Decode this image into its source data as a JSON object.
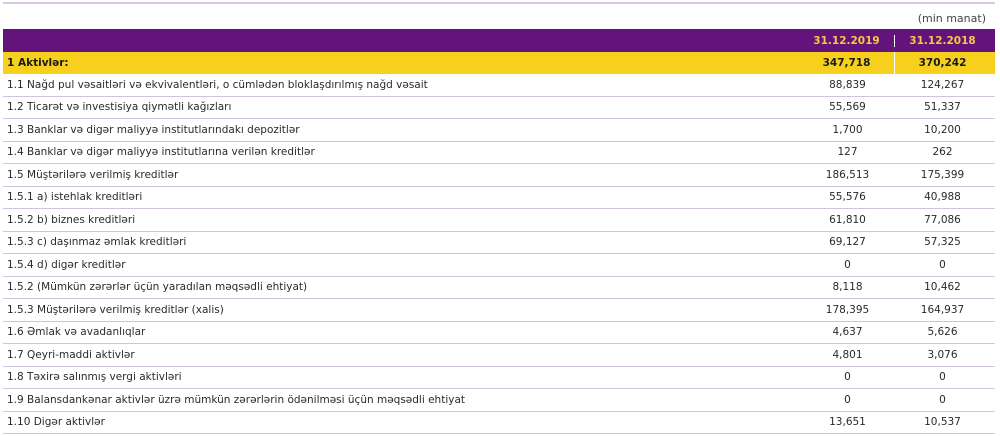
{
  "unit": "(min manat)",
  "columns": [
    "31.12.2019",
    "31.12.2018"
  ],
  "colors": {
    "header_bg": "#63147a",
    "header_text": "#f6c945",
    "total_bg": "#f6d01c",
    "row_line": "#d2c2dc"
  },
  "total": {
    "label": "1 Aktivlər:",
    "v2019": "347,718",
    "v2018": "370,242"
  },
  "rows": [
    {
      "label": "1.1 Nağd pul vəsaitləri və ekvivalentləri, o cümlədən bloklaşdırılmış nağd vəsait",
      "v2019": "88,839",
      "v2018": "124,267"
    },
    {
      "label": "1.2 Ticarət və investisiya qiymətli kağızları",
      "v2019": "55,569",
      "v2018": "51,337"
    },
    {
      "label": "1.3 Banklar və digər maliyyə institutlarındakı depozitlər",
      "v2019": "1,700",
      "v2018": "10,200"
    },
    {
      "label": "1.4 Banklar və digər maliyyə institutlarına verilən kreditlər",
      "v2019": "127",
      "v2018": "262"
    },
    {
      "label": "1.5 Müştərilərə verilmiş kreditlər",
      "v2019": "186,513",
      "v2018": "175,399"
    },
    {
      "label": "1.5.1 a) istehlak kreditləri",
      "v2019": "55,576",
      "v2018": "40,988"
    },
    {
      "label": "1.5.2 b) biznes kreditləri",
      "v2019": "61,810",
      "v2018": "77,086"
    },
    {
      "label": "1.5.3 c) daşınmaz əmlak kreditləri",
      "v2019": "69,127",
      "v2018": "57,325"
    },
    {
      "label": "1.5.4 d) digər kreditlər",
      "v2019": "0",
      "v2018": "0"
    },
    {
      "label": "1.5.2 (Mümkün zərərlər üçün yaradılan məqsədli ehtiyat)",
      "v2019": "8,118",
      "v2018": "10,462"
    },
    {
      "label": "1.5.3 Müştərilərə verilmiş kreditlər (xalis)",
      "v2019": "178,395",
      "v2018": "164,937"
    },
    {
      "label": "1.6 Əmlak və avadanlıqlar",
      "v2019": "4,637",
      "v2018": "5,626"
    },
    {
      "label": "1.7 Qeyri-maddi aktivlər",
      "v2019": "4,801",
      "v2018": "3,076"
    },
    {
      "label": "1.8 Təxirə salınmış vergi aktivləri",
      "v2019": "0",
      "v2018": "0"
    },
    {
      "label": "1.9 Balansdankənar aktivlər üzrə mümkün zərərlərin ödənilməsi üçün məqsədli ehtiyat",
      "v2019": "0",
      "v2018": "0"
    },
    {
      "label": "1.10 Digər aktivlər",
      "v2019": "13,651",
      "v2018": "10,537"
    }
  ]
}
